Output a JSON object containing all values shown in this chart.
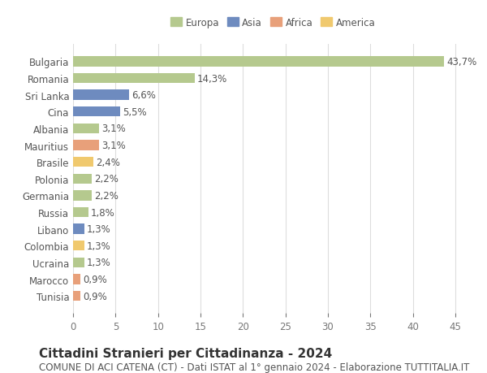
{
  "countries": [
    "Bulgaria",
    "Romania",
    "Sri Lanka",
    "Cina",
    "Albania",
    "Mauritius",
    "Brasile",
    "Polonia",
    "Germania",
    "Russia",
    "Libano",
    "Colombia",
    "Ucraina",
    "Marocco",
    "Tunisia"
  ],
  "values": [
    43.7,
    14.3,
    6.6,
    5.5,
    3.1,
    3.1,
    2.4,
    2.2,
    2.2,
    1.8,
    1.3,
    1.3,
    1.3,
    0.9,
    0.9
  ],
  "labels": [
    "43,7%",
    "14,3%",
    "6,6%",
    "5,5%",
    "3,1%",
    "3,1%",
    "2,4%",
    "2,2%",
    "2,2%",
    "1,8%",
    "1,3%",
    "1,3%",
    "1,3%",
    "0,9%",
    "0,9%"
  ],
  "colors": [
    "#b5c98e",
    "#b5c98e",
    "#6e8bbf",
    "#6e8bbf",
    "#b5c98e",
    "#e8a07a",
    "#f0c96e",
    "#b5c98e",
    "#b5c98e",
    "#b5c98e",
    "#6e8bbf",
    "#f0c96e",
    "#b5c98e",
    "#e8a07a",
    "#e8a07a"
  ],
  "continents": [
    "Europa",
    "Asia",
    "Africa",
    "America"
  ],
  "legend_colors": [
    "#b5c98e",
    "#6e8bbf",
    "#e8a07a",
    "#f0c96e"
  ],
  "title": "Cittadini Stranieri per Cittadinanza - 2024",
  "subtitle": "COMUNE DI ACI CATENA (CT) - Dati ISTAT al 1° gennaio 2024 - Elaborazione TUTTITALIA.IT",
  "xlim": [
    0,
    47
  ],
  "xticks": [
    0,
    5,
    10,
    15,
    20,
    25,
    30,
    35,
    40,
    45
  ],
  "background_color": "#ffffff",
  "grid_color": "#dddddd",
  "bar_height": 0.6,
  "label_fontsize": 8.5,
  "title_fontsize": 11,
  "subtitle_fontsize": 8.5
}
